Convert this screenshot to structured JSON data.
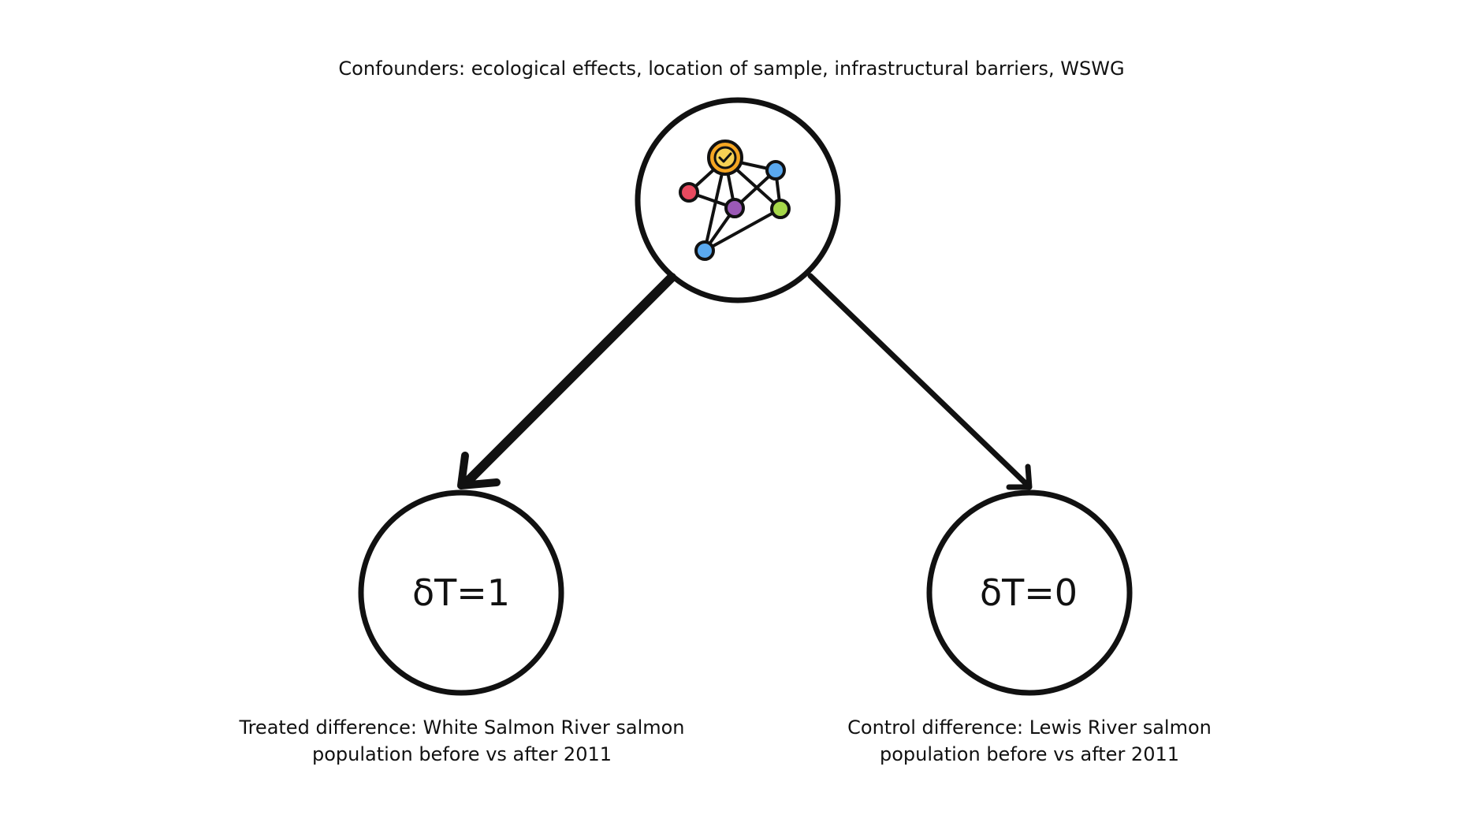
{
  "confounders": {
    "label": "Confounders: ecological effects, location of sample, infrastructural barriers, WSWG",
    "icon": "network-icon"
  },
  "treated": {
    "node_label": "δT=1",
    "caption_line1": "Treated difference: White Salmon River salmon",
    "caption_line2": "population before vs after 2011"
  },
  "control": {
    "node_label": "δT=0",
    "caption_line1": "Control difference: Lewis River salmon",
    "caption_line2": "population before vs after 2011"
  },
  "colors": {
    "stroke": "#111111",
    "background": "#ffffff",
    "node_orange": "#f5a623",
    "node_yellow": "#f7d154",
    "node_blue": "#5aa9f0",
    "node_red": "#e84a5f",
    "node_purple": "#9b59b6",
    "node_green": "#a6d84a"
  }
}
